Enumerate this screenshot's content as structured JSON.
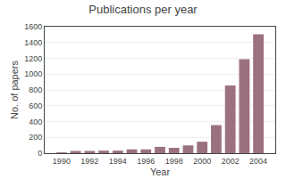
{
  "chart_data": {
    "type": "bar",
    "title": "Publications per year",
    "xlabel": "Year",
    "ylabel": "No. of papers",
    "x": [
      1990,
      1991,
      1992,
      1993,
      1994,
      1995,
      1996,
      1997,
      1998,
      1999,
      2000,
      2001,
      2002,
      2003,
      2004
    ],
    "values": [
      10,
      28,
      28,
      32,
      32,
      48,
      48,
      80,
      68,
      98,
      145,
      355,
      855,
      1190,
      1505
    ],
    "color": "#9b717f",
    "xlim": [
      1988.8,
      2005.2
    ],
    "xticks": [
      1990,
      1992,
      1994,
      1996,
      1998,
      2000,
      2002,
      2004
    ],
    "ylim": [
      0,
      1600
    ],
    "yticks": [
      0,
      200,
      400,
      600,
      800,
      1000,
      1200,
      1400,
      1600
    ],
    "grid": true
  }
}
